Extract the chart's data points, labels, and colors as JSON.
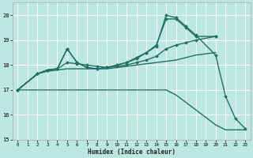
{
  "xlabel": "Humidex (Indice chaleur)",
  "bg_color": "#bde8e2",
  "grid_color": "#ffffff",
  "line_color": "#236e65",
  "xlim": [
    -0.5,
    23.5
  ],
  "ylim": [
    15,
    20.5
  ],
  "xticks": [
    0,
    1,
    2,
    3,
    4,
    5,
    6,
    7,
    8,
    9,
    10,
    11,
    12,
    13,
    14,
    15,
    16,
    17,
    18,
    19,
    20,
    21,
    22,
    23
  ],
  "yticks": [
    15,
    16,
    17,
    18,
    19,
    20
  ],
  "series": [
    {
      "x": [
        0,
        1,
        2,
        3,
        4,
        5,
        6,
        7,
        8,
        9,
        10,
        11,
        12,
        13,
        14,
        15,
        16,
        17,
        18,
        19,
        20,
        21,
        22,
        23
      ],
      "y": [
        17.0,
        17.0,
        17.0,
        17.0,
        17.0,
        17.0,
        17.0,
        17.0,
        17.0,
        17.0,
        17.0,
        17.0,
        17.0,
        17.0,
        17.0,
        17.0,
        16.8,
        16.5,
        16.2,
        15.9,
        15.6,
        15.4,
        15.4,
        15.4
      ],
      "marker": null,
      "markersize": 0,
      "linewidth": 1.0
    },
    {
      "x": [
        0,
        2,
        3,
        4,
        5,
        6,
        7,
        8,
        9,
        10,
        11,
        12,
        13,
        14,
        15,
        16,
        17,
        18,
        20,
        21,
        22,
        23
      ],
      "y": [
        17.0,
        17.65,
        17.8,
        17.85,
        18.65,
        18.1,
        17.9,
        17.85,
        17.9,
        18.0,
        18.1,
        18.25,
        18.5,
        18.75,
        20.0,
        19.9,
        19.55,
        19.2,
        18.4,
        16.75,
        15.85,
        15.45
      ],
      "marker": "D",
      "markersize": 2.0,
      "linewidth": 1.0
    },
    {
      "x": [
        0,
        2,
        3,
        4,
        5,
        6,
        7,
        8,
        9,
        10,
        11,
        12,
        13,
        14,
        15,
        16,
        17,
        18,
        20
      ],
      "y": [
        17.0,
        17.65,
        17.8,
        17.85,
        18.65,
        18.1,
        17.9,
        17.85,
        17.9,
        18.0,
        18.1,
        18.3,
        18.5,
        18.8,
        19.85,
        19.85,
        19.5,
        19.15,
        19.15
      ],
      "marker": "D",
      "markersize": 2.0,
      "linewidth": 1.0
    },
    {
      "x": [
        0,
        2,
        3,
        4,
        5,
        6,
        7,
        8,
        9,
        10,
        11,
        12,
        13,
        14,
        15,
        16,
        17,
        18,
        20
      ],
      "y": [
        17.0,
        17.65,
        17.8,
        17.85,
        18.1,
        18.05,
        18.0,
        17.95,
        17.9,
        17.95,
        18.0,
        18.1,
        18.2,
        18.35,
        18.65,
        18.8,
        18.9,
        19.0,
        19.15
      ],
      "marker": "D",
      "markersize": 2.0,
      "linewidth": 1.0
    },
    {
      "x": [
        0,
        2,
        3,
        4,
        5,
        6,
        7,
        8,
        9,
        10,
        11,
        12,
        13,
        14,
        15,
        16,
        17,
        18,
        20
      ],
      "y": [
        17.0,
        17.65,
        17.75,
        17.8,
        17.85,
        17.85,
        17.85,
        17.85,
        17.85,
        17.9,
        17.95,
        18.0,
        18.05,
        18.1,
        18.15,
        18.2,
        18.3,
        18.4,
        18.5
      ],
      "marker": null,
      "markersize": 0,
      "linewidth": 1.0
    }
  ]
}
